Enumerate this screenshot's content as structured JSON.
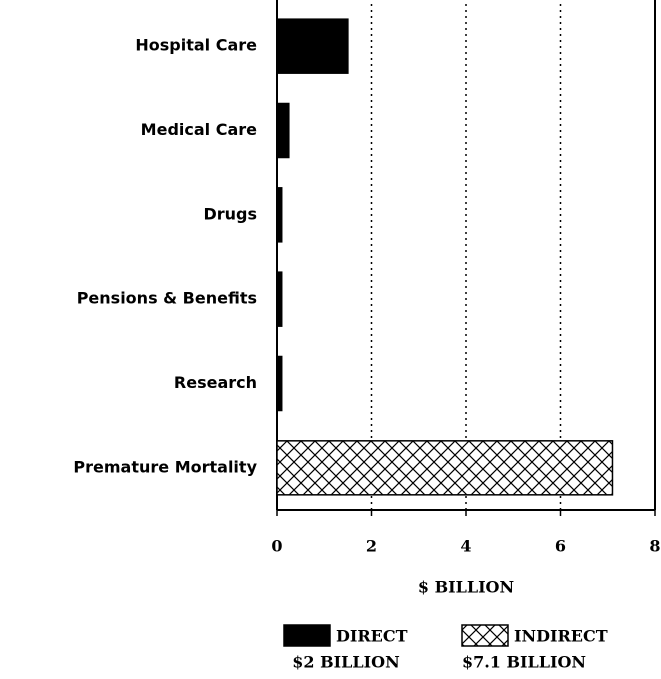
{
  "chart_data": {
    "type": "hbar",
    "categories": [
      "Hospital Care",
      "Medical Care",
      "Drugs",
      "Pensions & Benefits",
      "Research",
      "Premature Mortality"
    ],
    "series": [
      {
        "name": "DIRECT",
        "total_label": "$2 BILLION",
        "color": "#000000",
        "pattern": "solid",
        "values": [
          1.5,
          0.25,
          0.1,
          0.1,
          0.1,
          null
        ]
      },
      {
        "name": "INDIRECT",
        "total_label": "$7.1 BILLION",
        "color": "#000000",
        "pattern": "crosshatch",
        "values": [
          null,
          null,
          null,
          null,
          null,
          7.1
        ]
      }
    ],
    "xlabel": "$ BILLION",
    "xlim": [
      0,
      8
    ],
    "xticks": [
      0,
      2,
      4,
      6,
      8
    ],
    "grid": true
  }
}
